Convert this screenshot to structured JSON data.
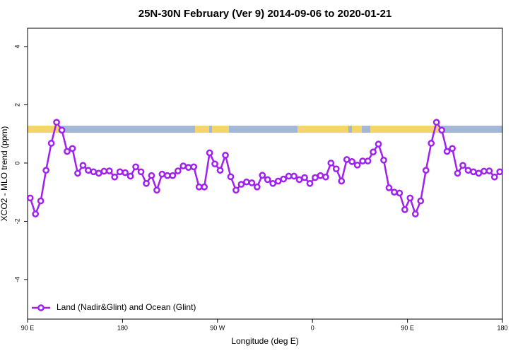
{
  "chart_data": {
    "type": "line",
    "title": "25N-30N February (Ver 9)   2014-09-06 to 2020-01-21",
    "xlabel": "Longitude (deg E)",
    "ylabel": "XCO2 - MLO trend (ppm)",
    "x": [
      92.5,
      97.5,
      102.5,
      107.5,
      112.5,
      117.5,
      122.5,
      127.5,
      132.5,
      137.5,
      142.5,
      147.5,
      152.5,
      157.5,
      162.5,
      167.5,
      172.5,
      177.5,
      182.5,
      187.5,
      192.5,
      197.5,
      202.5,
      207.5,
      212.5,
      217.5,
      222.5,
      227.5,
      232.5,
      237.5,
      242.5,
      247.5,
      252.5,
      257.5,
      262.5,
      267.5,
      272.5,
      277.5,
      282.5,
      287.5,
      292.5,
      297.5,
      302.5,
      307.5,
      312.5,
      317.5,
      322.5,
      327.5,
      332.5,
      337.5,
      342.5,
      347.5,
      352.5,
      357.5,
      362.5,
      367.5,
      372.5,
      377.5,
      382.5,
      387.5,
      392.5,
      397.5,
      402.5,
      407.5,
      412.5,
      417.5,
      422.5,
      427.5,
      432.5,
      437.5,
      442.5,
      447.5,
      452.5,
      457.5,
      462.5,
      467.5,
      472.5,
      477.5,
      482.5,
      487.5,
      492.5,
      497.5,
      502.5,
      507.5,
      512.5,
      517.5,
      522.5,
      527.5,
      532.5,
      537.5
    ],
    "series": [
      {
        "name": "Land (Nadir&Glint) and Ocean (Glint)",
        "color": "#a020f0",
        "values": [
          -1.2,
          -1.75,
          -1.3,
          -0.25,
          0.68,
          1.4,
          1.13,
          0.4,
          0.5,
          -0.35,
          -0.08,
          -0.25,
          -0.3,
          -0.35,
          -0.28,
          -0.27,
          -0.48,
          -0.3,
          -0.33,
          -0.45,
          -0.13,
          -0.3,
          -0.7,
          -0.43,
          -0.93,
          -0.38,
          -0.43,
          -0.43,
          -0.27,
          -0.1,
          -0.15,
          -0.13,
          -0.82,
          -0.82,
          0.35,
          -0.03,
          -0.25,
          0.27,
          -0.47,
          -0.93,
          -0.73,
          -0.65,
          -0.68,
          -0.82,
          -0.42,
          -0.57,
          -0.7,
          -0.62,
          -0.55,
          -0.45,
          -0.45,
          -0.57,
          -0.5,
          -0.7,
          -0.5,
          -0.43,
          -0.48,
          0.0,
          -0.2,
          -0.62,
          0.12,
          0.05,
          -0.07,
          0.07,
          0.07,
          0.38,
          0.65,
          0.1,
          -0.85,
          -1.0,
          -1.03,
          -1.6,
          -1.2,
          -1.75,
          -1.3,
          -0.25,
          0.68,
          1.4,
          1.13,
          0.4,
          0.5,
          -0.35,
          -0.08,
          -0.25,
          -0.3,
          -0.35,
          -0.28,
          -0.27,
          -0.48,
          -0.3
        ]
      }
    ],
    "xlim": [
      90,
      540
    ],
    "xticks": [
      {
        "value": 90,
        "label": "90 E"
      },
      180,
      {
        "value": 270,
        "label": "90 W"
      },
      {
        "value": 360,
        "label": "0"
      },
      {
        "value": 450,
        "label": "90 E"
      },
      {
        "value": 540,
        "label": "180"
      }
    ],
    "ylim": [
      -5.36,
      4.63
    ],
    "yticks": [
      -4,
      -2,
      0,
      2,
      4
    ],
    "legend": "bottomleft"
  }
}
